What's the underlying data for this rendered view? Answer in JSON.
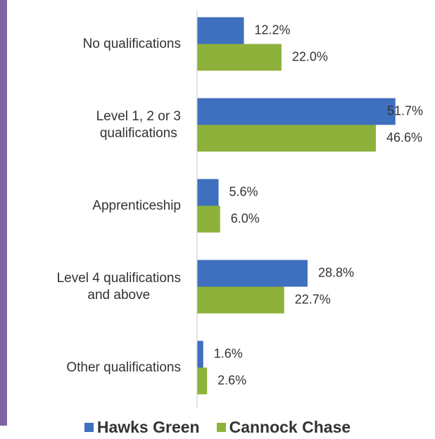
{
  "chart_data": {
    "type": "bar",
    "orientation": "horizontal",
    "categories": [
      "No qualifications",
      "Level 1, 2 or 3\nqualifications",
      "Apprenticeship",
      "Level 4 qualifications\nand above",
      "Other qualifications"
    ],
    "series": [
      {
        "name": "Hawks Green",
        "color": "#3f6fbf",
        "values": [
          12.2,
          51.7,
          5.6,
          28.8,
          1.6
        ],
        "value_labels": [
          "12.2%",
          "51.7%",
          "5.6%",
          "28.8%",
          "1.6%"
        ]
      },
      {
        "name": "Cannock Chase",
        "color": "#8db13a",
        "values": [
          22.0,
          46.6,
          6.0,
          22.7,
          2.6
        ],
        "value_labels": [
          "22.0%",
          "46.6%",
          "6.0%",
          "22.7%",
          "2.6%"
        ]
      }
    ],
    "xlim": [
      0,
      60
    ],
    "legend": "bottom"
  }
}
